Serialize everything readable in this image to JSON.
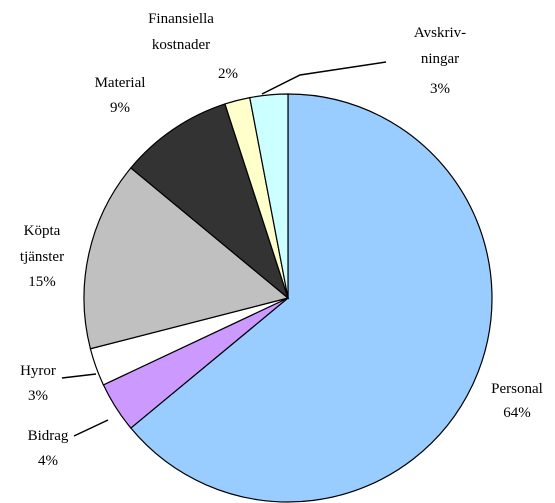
{
  "chart_data": {
    "type": "pie",
    "categories": [
      "Personal",
      "Bidrag",
      "Hyror",
      "Köpta\ntjänster",
      "Material",
      "Finansiella\nkostnader",
      "Avskriv-\nningar"
    ],
    "values": [
      64,
      4,
      3,
      15,
      9,
      2,
      3
    ],
    "value_labels": [
      "64%",
      "4%",
      "3%",
      "15%",
      "9%",
      "2%",
      "3%"
    ],
    "colors": [
      "#99ccff",
      "#cc99ff",
      "#ffffff",
      "#c0c0c0",
      "#333333",
      "#ffffcc",
      "#ccffff"
    ]
  }
}
